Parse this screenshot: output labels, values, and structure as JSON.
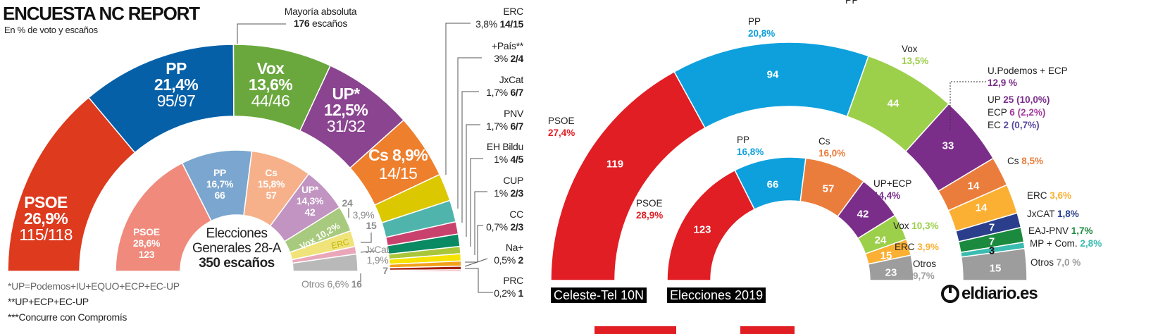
{
  "left": {
    "title": "ENCUESTA NC REPORT",
    "subtitle": "En % de voto y escaños",
    "majority": {
      "label": "Mayoría absoluta",
      "seats": "176",
      "suffix": " escaños"
    },
    "center": {
      "line1": "Elecciones",
      "line2": "Generales 28-A",
      "line3": "350 escaños"
    },
    "footnotes": [
      "*UP=Podemos+IU+EQUO+ECP+EC-UP",
      "**UP+ECP+EC-UP",
      "***Concurre con Compromís"
    ]
  },
  "right": {
    "clipped_top_label": "PP",
    "logo": "eldiario.es",
    "colors": {
      "accent": "#e01e24"
    }
  },
  "chart_data": [
    {
      "type": "pie",
      "shape": "semicircle-parliament",
      "title": "ENCUESTA NC REPORT",
      "subtitle": "En % de voto y escaños",
      "total_seats": 350,
      "majority_seats": 176,
      "outer": [
        {
          "name": "PSOE",
          "pct": "26,9%",
          "value": 26.9,
          "seats": "115/118",
          "color": "#dd3a1e"
        },
        {
          "name": "PP",
          "pct": "21,4%",
          "value": 21.4,
          "seats": "95/97",
          "color": "#0560a8"
        },
        {
          "name": "Vox",
          "pct": "13,6%",
          "value": 13.6,
          "seats": "44/46",
          "color": "#6aa83e"
        },
        {
          "name": "UP*",
          "pct": "12,5%",
          "value": 12.5,
          "seats": "31/32",
          "color": "#8a4490"
        },
        {
          "name": "Cs",
          "pct": "8,9%",
          "value": 8.9,
          "seats": "14/15",
          "color": "#ee7f2d"
        },
        {
          "name": "ERC",
          "pct": "3,8%",
          "value": 3.8,
          "seats": "14/15",
          "color": "#dcc800"
        },
        {
          "name": "+País**",
          "pct": "3%",
          "value": 3,
          "seats": "2/4",
          "color": "#4fb5ac"
        },
        {
          "name": "JxCat",
          "pct": "1,7%",
          "value": 1.7,
          "seats": "6/7",
          "color": "#c9426e"
        },
        {
          "name": "PNV",
          "pct": "1,7%",
          "value": 1.7,
          "seats": "6/7",
          "color": "#0a8a62"
        },
        {
          "name": "EH Bildu",
          "pct": "1%",
          "value": 1,
          "seats": "4/5",
          "color": "#a9c63a"
        },
        {
          "name": "CUP",
          "pct": "1%",
          "value": 1,
          "seats": "2/3",
          "color": "#f6e300"
        },
        {
          "name": "CC",
          "pct": "0,7%",
          "value": 0.7,
          "seats": "2/3",
          "color": "#f2a01a"
        },
        {
          "name": "Na+",
          "pct": "0,5%",
          "value": 0.5,
          "seats": "2",
          "color": "#a3200f"
        },
        {
          "name": "PRC",
          "pct": "0,2%",
          "value": 0.2,
          "seats": "1",
          "color": "#dc3a55"
        }
      ],
      "inner": [
        {
          "name": "PSOE",
          "pct": "28,6%",
          "seats": 123,
          "color": "#ef8a7c"
        },
        {
          "name": "PP",
          "pct": "16,7%",
          "seats": 66,
          "color": "#7ba6cf"
        },
        {
          "name": "Cs",
          "pct": "15,8%",
          "seats": 57,
          "color": "#f6b18a"
        },
        {
          "name": "UP*",
          "pct": "14,3%",
          "seats": 42,
          "color": "#c194c1"
        },
        {
          "name": "Vox",
          "pct": "10,2%",
          "seats": 24,
          "color": "#a8ca7e"
        },
        {
          "name": "ERC",
          "pct": "3,9%",
          "seats": 15,
          "color": "#efe37a"
        },
        {
          "name": "JxCat",
          "pct": "1,9%",
          "seats": 7,
          "color": "#eaa7b9"
        },
        {
          "name": "Otros",
          "pct": "6,6%",
          "seats": 16,
          "color": "#b9b9b9"
        }
      ]
    },
    {
      "type": "pie",
      "shape": "semicircle-parliament",
      "total_seats": 350,
      "outer_label": "Celeste-Tel 10N",
      "inner_label": "Elecciones 2019",
      "outer": [
        {
          "name": "PSOE",
          "pct": "27,4%",
          "seats": 119,
          "color": "#e01e24"
        },
        {
          "name": "PP",
          "pct": "20,8%",
          "seats": 94,
          "color": "#0ea0dc"
        },
        {
          "name": "Vox",
          "pct": "13,5%",
          "seats": 44,
          "color": "#9ccf4a"
        },
        {
          "name": "U.Podemos + ECP",
          "pct": "12,9 %",
          "seats": 33,
          "color": "#7a2e8a",
          "breakdown": [
            {
              "name": "UP",
              "seats": "25",
              "pct": "(10,0%)"
            },
            {
              "name": "ECP",
              "seats": "6",
              "pct": "(2,2%)"
            },
            {
              "name": "EC",
              "seats": "2",
              "pct": "(0,7%)"
            }
          ]
        },
        {
          "name": "Cs",
          "pct": "8,5%",
          "seats": 14,
          "color": "#eb7d3c"
        },
        {
          "name": "ERC",
          "pct": "3,6%",
          "seats": 14,
          "color": "#fbb034"
        },
        {
          "name": "JxCAT",
          "pct": "1,8%",
          "seats": 7,
          "color": "#2a3e8c"
        },
        {
          "name": "EAJ-PNV",
          "pct": "1,7%",
          "seats": 7,
          "color": "#1b8a3e"
        },
        {
          "name": "MP + Com.",
          "pct": "2,8%",
          "seats": 3,
          "color": "#3cbcb0"
        },
        {
          "name": "Otros",
          "pct": "7,0 %",
          "seats": 15,
          "color": "#9d9d9d"
        }
      ],
      "inner": [
        {
          "name": "PSOE",
          "pct": "28,9%",
          "seats": 123,
          "color": "#e01e24"
        },
        {
          "name": "PP",
          "pct": "16,8%",
          "seats": 66,
          "color": "#0ea0dc"
        },
        {
          "name": "Cs",
          "pct": "16,0%",
          "seats": 57,
          "color": "#eb7d3c"
        },
        {
          "name": "UP+ECP",
          "pct": "14,4%",
          "seats": 42,
          "color": "#7a2e8a"
        },
        {
          "name": "Vox",
          "pct": "10,3%",
          "seats": 24,
          "color": "#9ccf4a"
        },
        {
          "name": "ERC",
          "pct": "3,9%",
          "seats": 15,
          "color": "#fbb034"
        },
        {
          "name": "Otros",
          "pct": "9,7%",
          "seats": 23,
          "color": "#9d9d9d"
        }
      ]
    }
  ]
}
